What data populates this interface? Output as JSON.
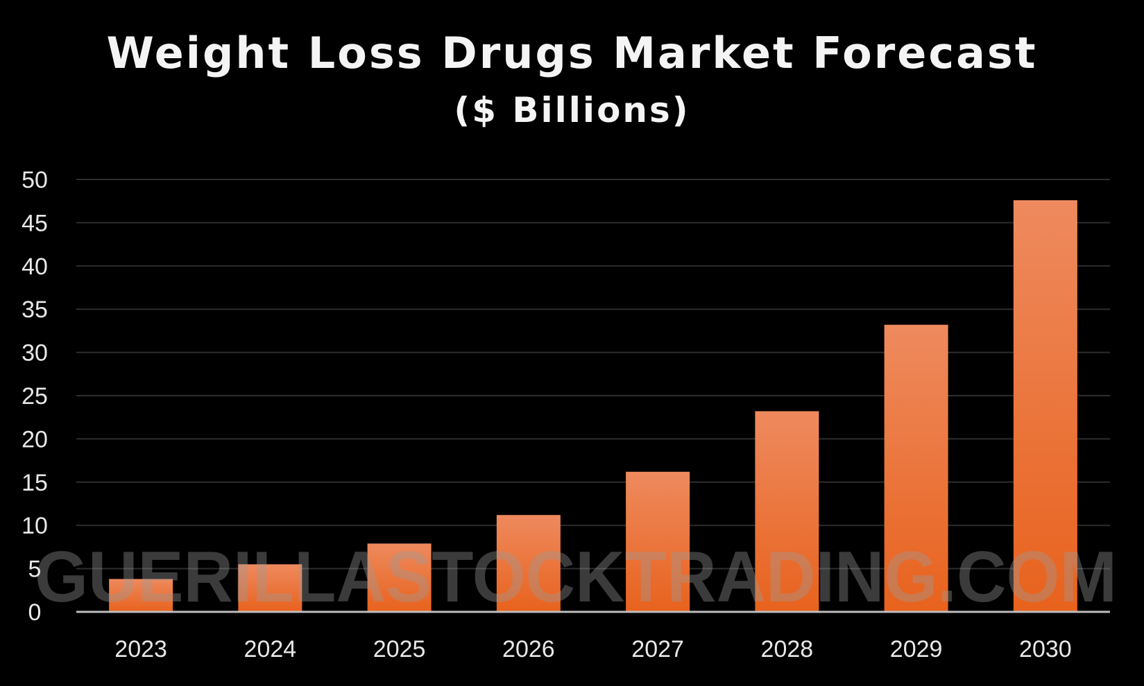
{
  "chart_data": {
    "type": "bar",
    "title": "Weight Loss Drugs Market Forecast",
    "subtitle": "($ Billions)",
    "categories": [
      "2023",
      "2024",
      "2025",
      "2026",
      "2027",
      "2028",
      "2029",
      "2030"
    ],
    "values": [
      3.8,
      5.5,
      7.9,
      11.2,
      16.2,
      23.2,
      33.2,
      47.6
    ],
    "ylim": [
      0,
      50
    ],
    "yticks": [
      0,
      5,
      10,
      15,
      20,
      25,
      30,
      35,
      40,
      45,
      50
    ],
    "grid": true,
    "bar_color_top": "#ee8a5e",
    "bar_color_bottom": "#e8621d",
    "background": "#000000",
    "watermark": "GUERILLASTOCKTRADING.COM"
  }
}
